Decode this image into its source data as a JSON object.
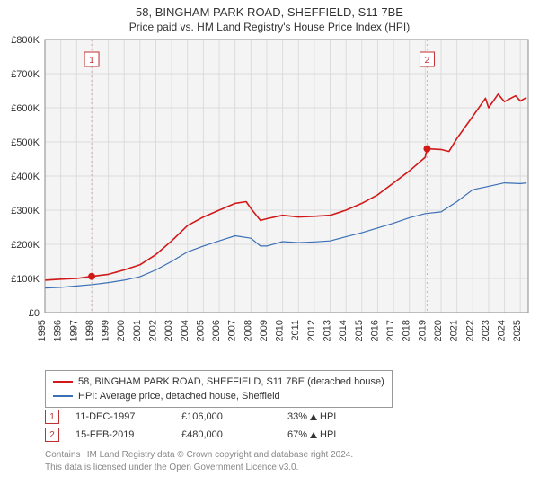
{
  "title": "58, BINGHAM PARK ROAD, SHEFFIELD, S11 7BE",
  "subtitle": "Price paid vs. HM Land Registry's House Price Index (HPI)",
  "chart": {
    "type": "line",
    "plot_bg": "#f4f4f4",
    "page_bg": "#ffffff",
    "grid_color": "#dcdcdc",
    "axis_color": "#888",
    "x": {
      "min": 1995,
      "max": 2025.5,
      "ticks": [
        1995,
        1996,
        1997,
        1998,
        1999,
        2000,
        2001,
        2002,
        2003,
        2004,
        2005,
        2006,
        2007,
        2008,
        2009,
        2010,
        2011,
        2012,
        2013,
        2014,
        2015,
        2016,
        2017,
        2018,
        2019,
        2020,
        2021,
        2022,
        2023,
        2024,
        2025
      ]
    },
    "y": {
      "min": 0,
      "max": 800000,
      "tick_step": 100000,
      "labels": [
        "£0",
        "£100K",
        "£200K",
        "£300K",
        "£400K",
        "£500K",
        "£600K",
        "£700K",
        "£800K"
      ]
    },
    "series": [
      {
        "name": "58, BINGHAM PARK ROAD, SHEFFIELD, S11 7BE (detached house)",
        "color": "#d11919",
        "width": 1.6,
        "points": [
          [
            1995,
            95000
          ],
          [
            1996,
            98000
          ],
          [
            1997,
            100000
          ],
          [
            1997.95,
            106000
          ],
          [
            1999,
            112000
          ],
          [
            2000,
            125000
          ],
          [
            2001,
            140000
          ],
          [
            2002,
            170000
          ],
          [
            2003,
            210000
          ],
          [
            2004,
            255000
          ],
          [
            2005,
            280000
          ],
          [
            2006,
            300000
          ],
          [
            2007,
            320000
          ],
          [
            2007.7,
            325000
          ],
          [
            2008,
            305000
          ],
          [
            2008.6,
            270000
          ],
          [
            2009,
            275000
          ],
          [
            2010,
            285000
          ],
          [
            2011,
            280000
          ],
          [
            2012,
            282000
          ],
          [
            2013,
            285000
          ],
          [
            2014,
            300000
          ],
          [
            2015,
            320000
          ],
          [
            2016,
            345000
          ],
          [
            2017,
            380000
          ],
          [
            2018,
            415000
          ],
          [
            2019,
            455000
          ],
          [
            2019.12,
            480000
          ],
          [
            2020,
            478000
          ],
          [
            2020.5,
            472000
          ],
          [
            2021,
            510000
          ],
          [
            2022,
            575000
          ],
          [
            2022.8,
            628000
          ],
          [
            2023,
            600000
          ],
          [
            2023.6,
            640000
          ],
          [
            2024,
            618000
          ],
          [
            2024.7,
            635000
          ],
          [
            2025,
            620000
          ],
          [
            2025.4,
            630000
          ]
        ]
      },
      {
        "name": "HPI: Average price, detached house, Sheffield",
        "color": "#3b6fb6",
        "width": 1.2,
        "points": [
          [
            1995,
            72000
          ],
          [
            1996,
            74000
          ],
          [
            1997,
            78000
          ],
          [
            1998,
            82000
          ],
          [
            1999,
            88000
          ],
          [
            2000,
            95000
          ],
          [
            2001,
            105000
          ],
          [
            2002,
            125000
          ],
          [
            2003,
            150000
          ],
          [
            2004,
            178000
          ],
          [
            2005,
            195000
          ],
          [
            2006,
            210000
          ],
          [
            2007,
            225000
          ],
          [
            2008,
            218000
          ],
          [
            2008.6,
            195000
          ],
          [
            2009,
            195000
          ],
          [
            2010,
            208000
          ],
          [
            2011,
            205000
          ],
          [
            2012,
            207000
          ],
          [
            2013,
            210000
          ],
          [
            2014,
            222000
          ],
          [
            2015,
            234000
          ],
          [
            2016,
            248000
          ],
          [
            2017,
            262000
          ],
          [
            2018,
            278000
          ],
          [
            2019,
            290000
          ],
          [
            2020,
            295000
          ],
          [
            2021,
            325000
          ],
          [
            2022,
            360000
          ],
          [
            2023,
            370000
          ],
          [
            2024,
            380000
          ],
          [
            2025,
            378000
          ],
          [
            2025.4,
            380000
          ]
        ]
      }
    ],
    "vlines": [
      {
        "x": 1997.95,
        "color": "#d7b0b0",
        "badge": "1"
      },
      {
        "x": 2019.12,
        "color": "#d7b0b0",
        "badge": "2"
      }
    ],
    "sale_markers": [
      {
        "x": 1997.95,
        "y": 106000,
        "color": "#d11919"
      },
      {
        "x": 2019.12,
        "y": 480000,
        "color": "#d11919"
      }
    ]
  },
  "legend_items": [
    {
      "color": "#d11919",
      "label": "58, BINGHAM PARK ROAD, SHEFFIELD, S11 7BE (detached house)"
    },
    {
      "color": "#3b6fb6",
      "label": "HPI: Average price, detached house, Sheffield"
    }
  ],
  "sales_rows": [
    {
      "badge": "1",
      "date": "11-DEC-1997",
      "price": "£106,000",
      "delta_pct": "33%",
      "delta_label": "HPI"
    },
    {
      "badge": "2",
      "date": "15-FEB-2019",
      "price": "£480,000",
      "delta_pct": "67%",
      "delta_label": "HPI"
    }
  ],
  "footer1": "Contains HM Land Registry data © Crown copyright and database right 2024.",
  "footer2": "This data is licensed under the Open Government Licence v3.0.",
  "badge_border": "#c03030",
  "label_fontsize": 11,
  "title_fontsize": 13
}
